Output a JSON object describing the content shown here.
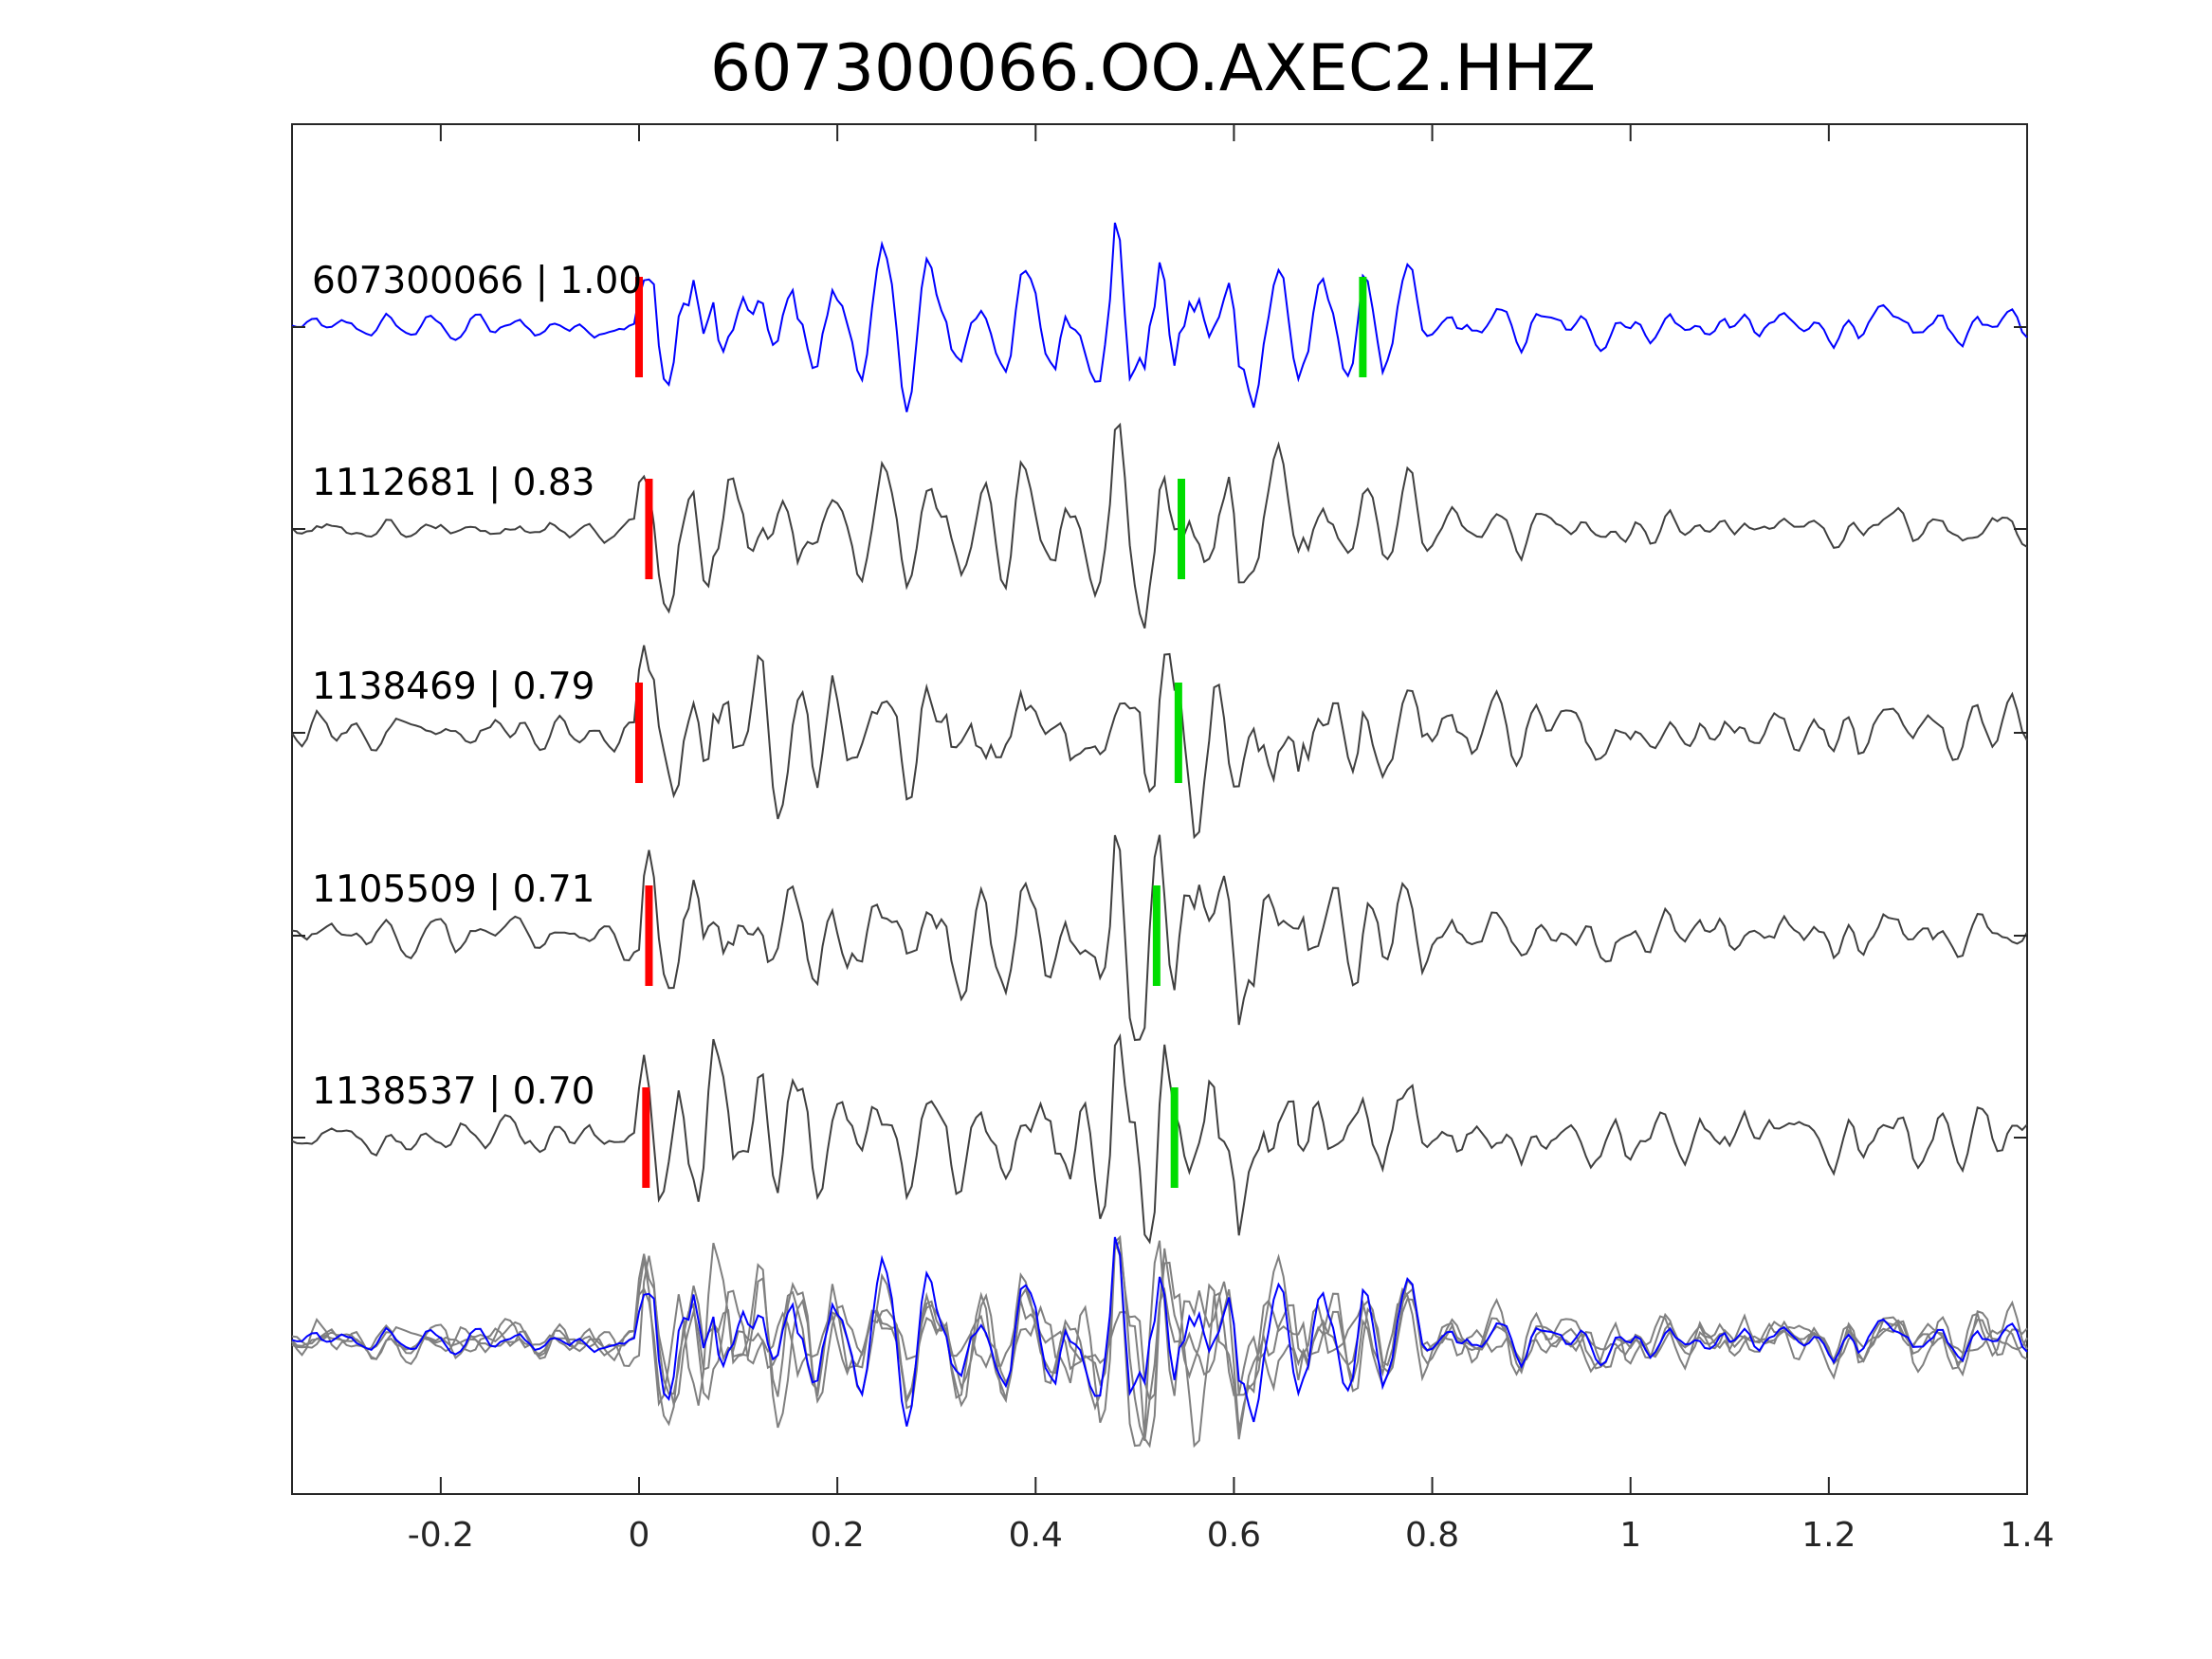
{
  "chart_data": {
    "type": "line",
    "title": "607300066.OO.AXEC2.HHZ",
    "xlabel": "",
    "ylabel": "",
    "xlim": [
      -0.35,
      1.4
    ],
    "x_ticks": [
      -0.2,
      0,
      0.2,
      0.4,
      0.6,
      0.8,
      1,
      1.2,
      1.4
    ],
    "x_tick_labels": [
      "-0.2",
      "0",
      "0.2",
      "0.4",
      "0.6",
      "0.8",
      "1",
      "1.2",
      "1.4"
    ],
    "y_ticks_visible": false,
    "grid": false,
    "traces": [
      {
        "label": "607300066 | 1.00",
        "id": "607300066",
        "cc": 1.0,
        "color": "#0000ff",
        "p_pick": 0.0,
        "s_pick": 0.73
      },
      {
        "label": "1112681 | 0.83",
        "id": "1112681",
        "cc": 0.83,
        "color": "#404040",
        "p_pick": 0.01,
        "s_pick": 0.547
      },
      {
        "label": "1138469 | 0.79",
        "id": "1138469",
        "cc": 0.79,
        "color": "#404040",
        "p_pick": 0.0,
        "s_pick": 0.544
      },
      {
        "label": "1105509 | 0.71",
        "id": "1105509",
        "cc": 0.71,
        "color": "#404040",
        "p_pick": 0.01,
        "s_pick": 0.522
      },
      {
        "label": "1138537 | 0.70",
        "id": "1138537",
        "cc": 0.7,
        "color": "#404040",
        "p_pick": 0.007,
        "s_pick": 0.54
      }
    ],
    "overlay": {
      "description_series": "all traces superimposed",
      "template_color": "#0000ff",
      "others_color": "#808080"
    },
    "pick_colors": {
      "p": "#ff0000",
      "s": "#00dd00"
    }
  }
}
